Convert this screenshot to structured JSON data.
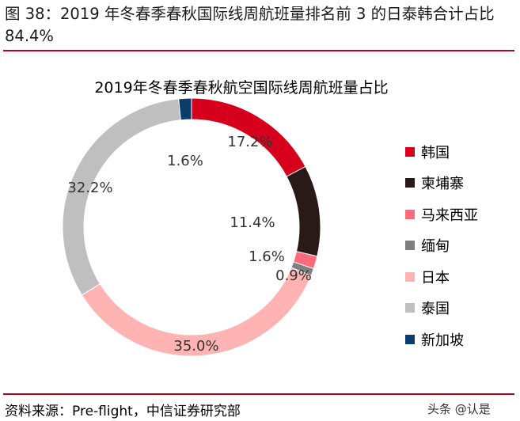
{
  "figure": {
    "title": "图 38：2019 年冬春季春秋国际线周航班量排名前 3 的日泰韩合计占比 84.4%",
    "source": "资料来源：Pre-flight，中信证券研究部",
    "watermark": "头条 @认是"
  },
  "chart_data": {
    "type": "pie",
    "variant": "donut",
    "title": "2019年冬春季春秋航空国际线周航班量占比",
    "unit": "%",
    "legend_position": "right",
    "slices": [
      {
        "name": "韩国",
        "value": 17.2,
        "label": "17.2%",
        "color": "#d6001c"
      },
      {
        "name": "柬埔寨",
        "value": 11.4,
        "label": "11.4%",
        "color": "#2a1a17"
      },
      {
        "name": "马来西亚",
        "value": 1.6,
        "label": "1.6%",
        "color": "#ff6b7a"
      },
      {
        "name": "缅甸",
        "value": 0.9,
        "label": "0.9%",
        "color": "#7f7f7f"
      },
      {
        "name": "日本",
        "value": 35.0,
        "label": "35.0%",
        "color": "#ffb3b3"
      },
      {
        "name": "泰国",
        "value": 32.2,
        "label": "32.2%",
        "color": "#bfbfbf"
      },
      {
        "name": "新加坡",
        "value": 1.6,
        "label": "1.6%",
        "color": "#0b3c6e"
      }
    ]
  }
}
